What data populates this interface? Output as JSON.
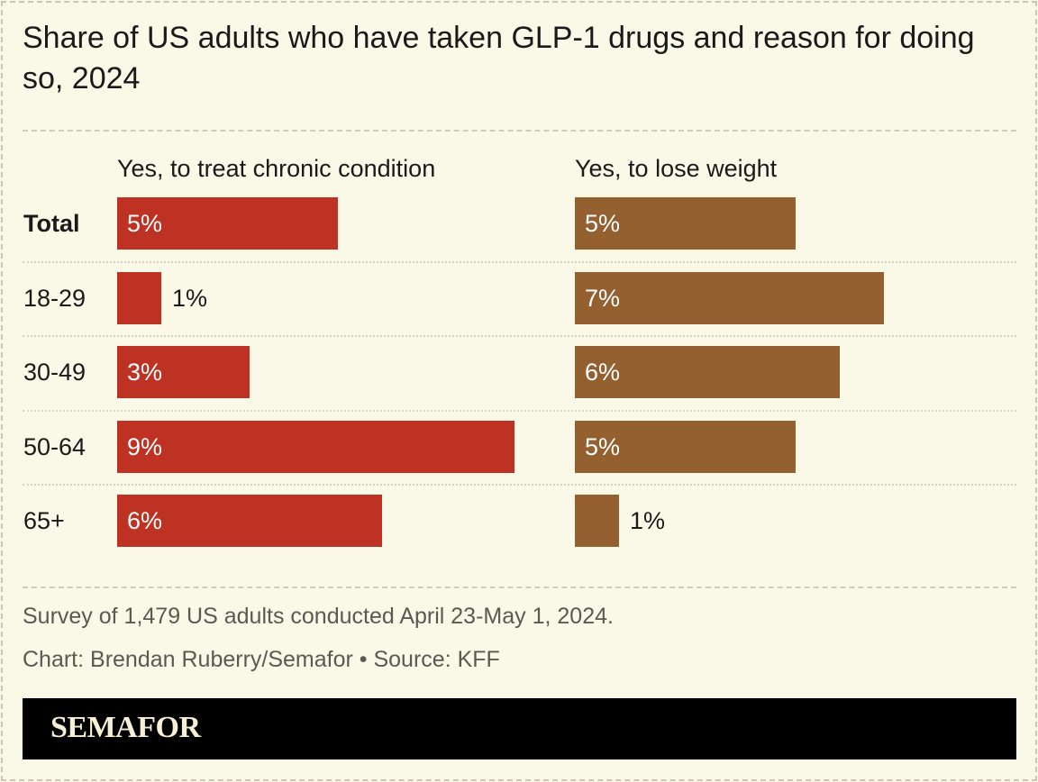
{
  "chart_data": {
    "type": "bar",
    "title": "Share of US adults who have taken GLP-1 drugs and reason for doing so, 2024",
    "categories": [
      "Total",
      "18-29",
      "30-49",
      "50-64",
      "65+"
    ],
    "series": [
      {
        "name": "Yes, to treat chronic condition",
        "values": [
          5,
          1,
          3,
          9,
          6
        ],
        "labels": [
          "5%",
          "1%",
          "3%",
          "9%",
          "6%"
        ],
        "color": "#bd3222"
      },
      {
        "name": "Yes, to lose weight",
        "values": [
          5,
          7,
          6,
          5,
          1
        ],
        "labels": [
          "5%",
          "7%",
          "6%",
          "5%",
          "1%"
        ],
        "color": "#94602f"
      }
    ],
    "orientation": "horizontal",
    "layout": "small-multiples",
    "bold_categories": [
      "Total"
    ],
    "grid": false
  },
  "footer": {
    "note": "Survey of 1,479 US adults conducted April 23-May 1, 2024.",
    "credit": "Chart: Brendan Ruberry/Semafor • Source: KFF",
    "brand": "SEMAFOR"
  },
  "colors": {
    "background": "#faf8e6",
    "brand_bar": "#000000",
    "brand_text": "#f5f0d6"
  }
}
